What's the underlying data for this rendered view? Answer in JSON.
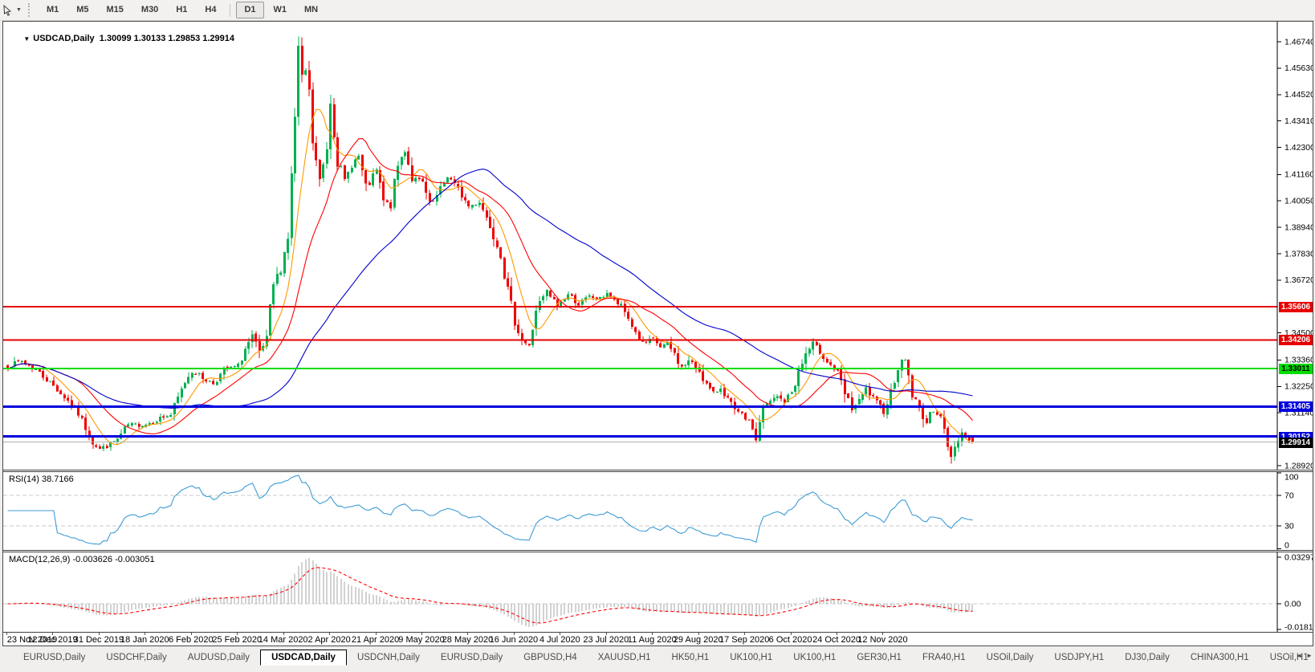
{
  "toolbar": {
    "timeframes": [
      "M1",
      "M5",
      "M15",
      "M30",
      "H1",
      "H4",
      "D1",
      "W1",
      "MN"
    ],
    "active_timeframe": "D1"
  },
  "chart": {
    "collapse_icon": "▼",
    "title": "USDCAD,Daily",
    "ohlc_text": "1.30099 1.30133 1.29853 1.29914"
  },
  "rsi_panel": {
    "label": "RSI(14) 38.7166"
  },
  "macd_panel": {
    "label": "MACD(12,26,9) -0.003626 -0.003051"
  },
  "tabs": {
    "items": [
      "EURUSD,Daily",
      "USDCHF,Daily",
      "AUDUSD,Daily",
      "USDCAD,Daily",
      "USDCNH,Daily",
      "EURUSD,Daily",
      "GBPUSD,H4",
      "XAUUSD,H1",
      "HK50,H1",
      "UK100,H1",
      "UK100,H1",
      "GER30,H1",
      "FRA40,H1",
      "USOil,Daily",
      "USDJPY,H1",
      "DJ30,Daily",
      "CHINA300,H1",
      "USOil,H1"
    ],
    "active_index": 3,
    "nav_left": "◄",
    "nav_right": "►"
  },
  "chart_data": {
    "type": "candlestick",
    "symbol": "USDCAD",
    "timeframe": "Daily",
    "open": 1.30099,
    "high": 1.30133,
    "low": 1.29853,
    "close": 1.29914,
    "up_color": "#00b050",
    "down_color": "#ee0000",
    "y_ticks": [
      "1.46740",
      "1.45630",
      "1.44520",
      "1.43410",
      "1.42300",
      "1.41160",
      "1.40050",
      "1.38940",
      "1.37830",
      "1.36720",
      "1.34500",
      "1.33360",
      "1.32250",
      "1.31140",
      "1.28920"
    ],
    "y_range": [
      1.2892,
      1.4674
    ],
    "x_labels": [
      "23 Nov 2019",
      "12 Dec 2019",
      "31 Dec 2019",
      "18 Jan 2020",
      "6 Feb 2020",
      "25 Feb 2020",
      "14 Mar 2020",
      "2 Apr 2020",
      "21 Apr 2020",
      "9 May 2020",
      "28 May 2020",
      "16 Jun 2020",
      "4 Jul 2020",
      "23 Jul 2020",
      "11 Aug 2020",
      "29 Aug 2020",
      "17 Sep 2020",
      "6 Oct 2020",
      "24 Oct 2020",
      "12 Nov 2020"
    ],
    "candles_per_label": 13,
    "horizontal_levels": [
      {
        "price": 1.35606,
        "color": "#e60000",
        "line_width": 2,
        "text_color": "#ffffff"
      },
      {
        "price": 1.34206,
        "color": "#e60000",
        "line_width": 2,
        "text_color": "#ffffff"
      },
      {
        "price": 1.33011,
        "color": "#00dd00",
        "line_width": 2,
        "text_color": "#000000"
      },
      {
        "price": 1.31405,
        "color": "#0000dd",
        "line_width": 3,
        "text_color": "#ffffff"
      },
      {
        "price": 1.30152,
        "color": "#0000dd",
        "line_width": 3,
        "text_color": "#ffffff"
      }
    ],
    "last_price_line": {
      "price": 1.29914,
      "line_color": "#b0b0b0",
      "box_color": "#000000",
      "text_color": "#ffffff"
    },
    "moving_averages": [
      {
        "period": 8,
        "color": "#ff9900"
      },
      {
        "period": 20,
        "color": "#ff0000"
      },
      {
        "period": 55,
        "color": "#0000cc"
      }
    ],
    "close_anchors": [
      [
        0,
        1.331
      ],
      [
        4,
        1.3332
      ],
      [
        8,
        1.3295
      ],
      [
        13,
        1.3228
      ],
      [
        17,
        1.3165
      ],
      [
        20,
        1.311
      ],
      [
        24,
        1.2993
      ],
      [
        26,
        1.2962
      ],
      [
        28,
        1.2975
      ],
      [
        31,
        1.3002
      ],
      [
        34,
        1.3062
      ],
      [
        39,
        1.3066
      ],
      [
        43,
        1.3092
      ],
      [
        46,
        1.3105
      ],
      [
        50,
        1.3245
      ],
      [
        52,
        1.3292
      ],
      [
        55,
        1.326
      ],
      [
        58,
        1.3238
      ],
      [
        61,
        1.3292
      ],
      [
        65,
        1.3312
      ],
      [
        67,
        1.3382
      ],
      [
        69,
        1.3432
      ],
      [
        71,
        1.3362
      ],
      [
        73,
        1.3422
      ],
      [
        75,
        1.3652
      ],
      [
        77,
        1.3722
      ],
      [
        79,
        1.3855
      ],
      [
        81,
        1.4355
      ],
      [
        82,
        1.464
      ],
      [
        83,
        1.4502
      ],
      [
        84,
        1.4552
      ],
      [
        85,
        1.4452
      ],
      [
        86,
        1.4252
      ],
      [
        88,
        1.4082
      ],
      [
        90,
        1.4232
      ],
      [
        91,
        1.4432
      ],
      [
        93,
        1.4182
      ],
      [
        95,
        1.4082
      ],
      [
        97,
        1.4162
      ],
      [
        99,
        1.4192
      ],
      [
        101,
        1.4052
      ],
      [
        104,
        1.4132
      ],
      [
        106,
        1.4002
      ],
      [
        108,
        1.3982
      ],
      [
        110,
        1.4152
      ],
      [
        112,
        1.4222
      ],
      [
        114,
        1.4102
      ],
      [
        117,
        1.4082
      ],
      [
        119,
        1.3982
      ],
      [
        121,
        1.4022
      ],
      [
        124,
        1.4112
      ],
      [
        127,
        1.4052
      ],
      [
        130,
        1.3982
      ],
      [
        133,
        1.4002
      ],
      [
        136,
        1.3902
      ],
      [
        139,
        1.3782
      ],
      [
        141,
        1.3622
      ],
      [
        143,
        1.3502
      ],
      [
        145,
        1.3422
      ],
      [
        147,
        1.3392
      ],
      [
        149,
        1.3552
      ],
      [
        152,
        1.3622
      ],
      [
        155,
        1.3562
      ],
      [
        158,
        1.3612
      ],
      [
        161,
        1.3572
      ],
      [
        164,
        1.3602
      ],
      [
        167,
        1.3592
      ],
      [
        169,
        1.3622
      ],
      [
        171,
        1.3582
      ],
      [
        173,
        1.3562
      ],
      [
        175,
        1.3512
      ],
      [
        177,
        1.3452
      ],
      [
        179,
        1.3402
      ],
      [
        182,
        1.3422
      ],
      [
        184,
        1.3392
      ],
      [
        186,
        1.3402
      ],
      [
        188,
        1.3362
      ],
      [
        190,
        1.3302
      ],
      [
        192,
        1.3332
      ],
      [
        195,
        1.3292
      ],
      [
        197,
        1.3232
      ],
      [
        199,
        1.3192
      ],
      [
        201,
        1.3222
      ],
      [
        203,
        1.3172
      ],
      [
        205,
        1.3122
      ],
      [
        208,
        1.3092
      ],
      [
        210,
        1.3052
      ],
      [
        211,
        1.2996
      ],
      [
        212,
        1.3082
      ],
      [
        213,
        1.3132
      ],
      [
        215,
        1.3162
      ],
      [
        217,
        1.3182
      ],
      [
        219,
        1.3162
      ],
      [
        221,
        1.3202
      ],
      [
        223,
        1.3282
      ],
      [
        225,
        1.3362
      ],
      [
        227,
        1.3402
      ],
      [
        229,
        1.3372
      ],
      [
        231,
        1.3332
      ],
      [
        234,
        1.3282
      ],
      [
        236,
        1.3192
      ],
      [
        238,
        1.3132
      ],
      [
        240,
        1.3162
      ],
      [
        242,
        1.3212
      ],
      [
        244,
        1.3172
      ],
      [
        247,
        1.3122
      ],
      [
        249,
        1.3202
      ],
      [
        251,
        1.3312
      ],
      [
        253,
        1.3342
      ],
      [
        255,
        1.3192
      ],
      [
        257,
        1.3132
      ],
      [
        259,
        1.3072
      ],
      [
        261,
        1.3132
      ],
      [
        263,
        1.3102
      ],
      [
        264,
        1.3032
      ],
      [
        265,
        1.2962
      ],
      [
        266,
        1.2936
      ],
      [
        267,
        1.2972
      ],
      [
        268,
        1.3012
      ],
      [
        269,
        1.3032
      ],
      [
        270,
        1.3012
      ],
      [
        271,
        1.2998
      ],
      [
        272,
        1.29914
      ]
    ],
    "rsi": {
      "period": 14,
      "current": 38.7166,
      "color": "#3d9bd5",
      "levels": [
        70,
        30
      ],
      "y_ticks": [
        "100",
        "70",
        "30",
        "0"
      ]
    },
    "macd": {
      "fast": 12,
      "slow": 26,
      "signal_period": 9,
      "current_macd": -0.003626,
      "current_signal": -0.003051,
      "histogram_color": "#a6a6a6",
      "signal_color": "#ff0000",
      "y_ticks": [
        "0.032972",
        "0.00",
        "-0.018154"
      ],
      "scale_max": 0.032972,
      "scale_min": -0.018154
    }
  }
}
